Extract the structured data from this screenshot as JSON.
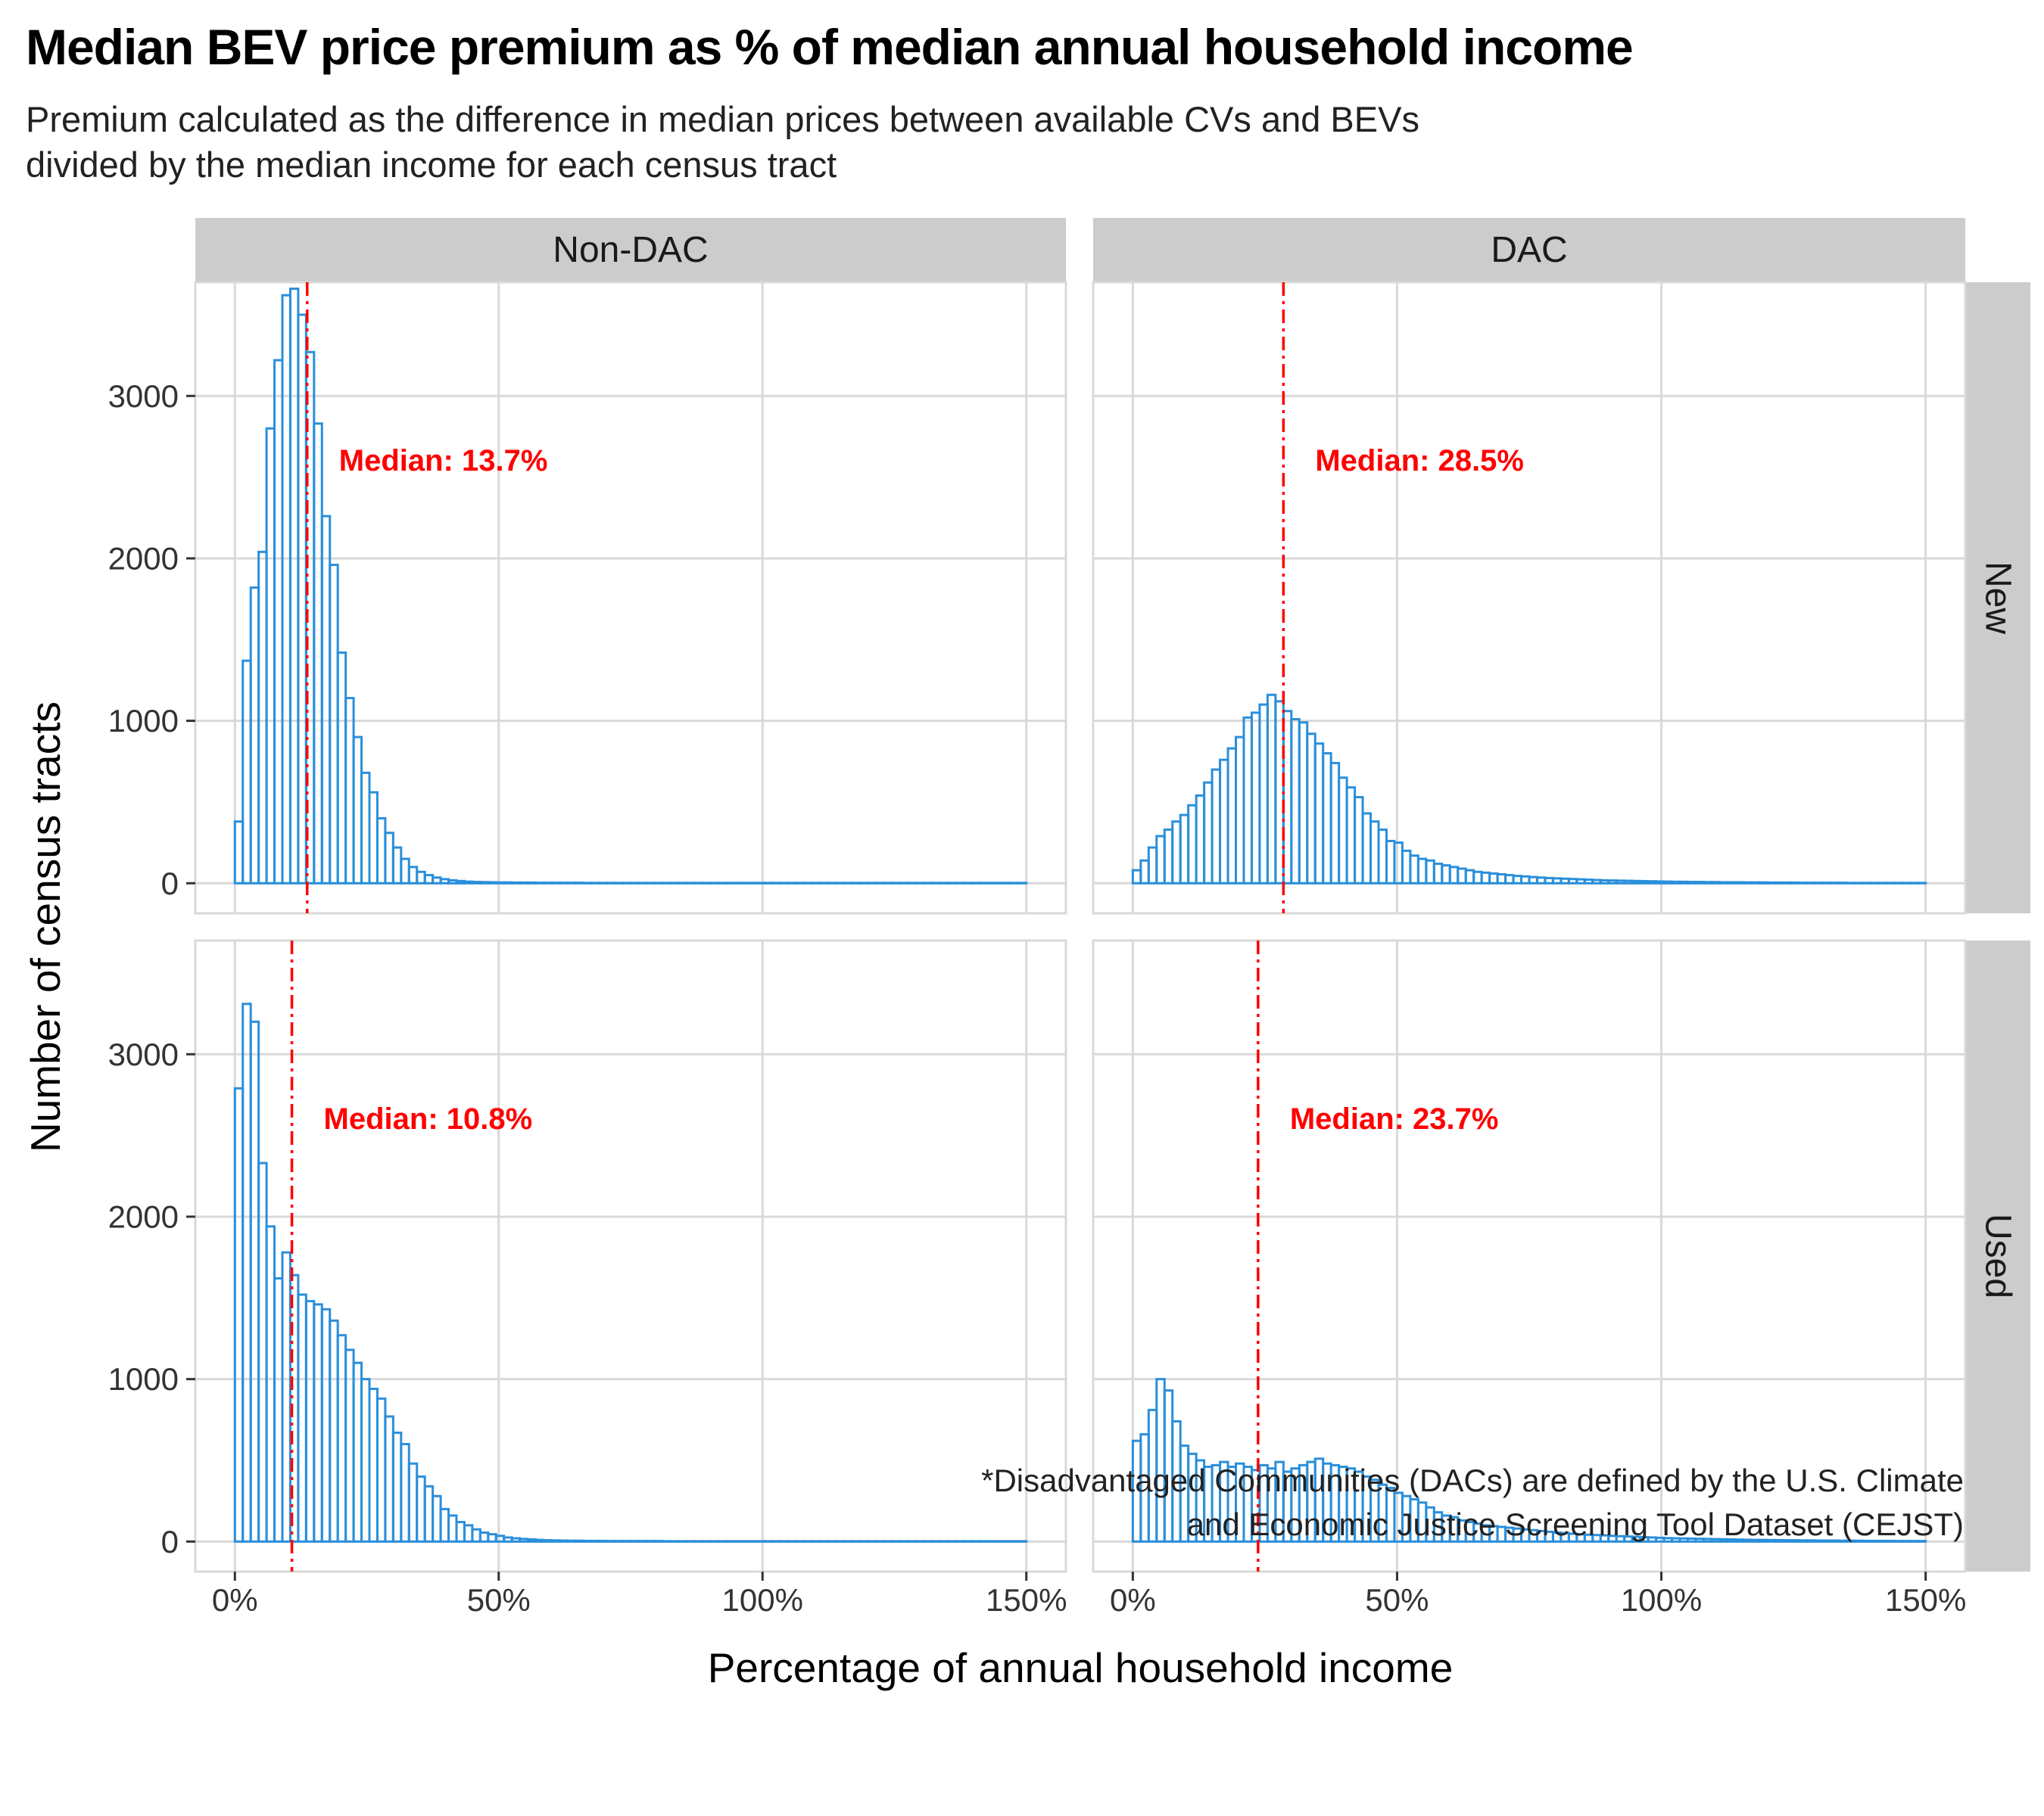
{
  "title": "Median BEV price premium as % of median annual household income",
  "subtitle_lines": [
    "Premium calculated as the difference in median prices between available CVs and BEVs",
    "divided by the median income for each census tract"
  ],
  "caption_lines": [
    "*Disadvantaged Communities (DACs) are defined by the U.S. Climate",
    "and Economic Justice Screening Tool Dataset (CEJST)"
  ],
  "colors": {
    "bar_outline": "#2a8fdb",
    "median_line": "#ff0000",
    "strip_bg": "#cccccc",
    "grid": "#d9d9d9"
  },
  "chart_data": {
    "type": "histogram",
    "xlabel": "Percentage of annual household income",
    "ylabel": "Number of census tracts",
    "xlim": [
      0,
      150
    ],
    "ylim": [
      0,
      3700
    ],
    "x_ticks": [
      0,
      50,
      100,
      150
    ],
    "x_tick_labels": [
      "0%",
      "50%",
      "100%",
      "150%"
    ],
    "y_ticks": [
      0,
      1000,
      2000,
      3000
    ],
    "y_tick_labels": [
      "0",
      "1000",
      "2000",
      "3000"
    ],
    "grid": true,
    "bin_width": 1.5,
    "column_facets": [
      "Non-DAC",
      "DAC"
    ],
    "row_facets": [
      "New",
      "Used"
    ],
    "panels": [
      {
        "row": "New",
        "col": "Non-DAC",
        "median": 13.7,
        "median_label": "Median: 13.7%",
        "counts": [
          380,
          1370,
          1820,
          2040,
          2800,
          3220,
          3620,
          3660,
          3500,
          3270,
          2830,
          2260,
          1960,
          1420,
          1140,
          900,
          680,
          560,
          400,
          310,
          220,
          150,
          100,
          70,
          50,
          35,
          25,
          18,
          14,
          10,
          8,
          7,
          6,
          5,
          5,
          4,
          4,
          4,
          3,
          3,
          3,
          3,
          3,
          3,
          2,
          2,
          2,
          2,
          2,
          2,
          2,
          2,
          2,
          2,
          2,
          2,
          2,
          2,
          2,
          2,
          2,
          2,
          2,
          2,
          2,
          2,
          2,
          2,
          2,
          2,
          2,
          2,
          2,
          2,
          2,
          2,
          2,
          2,
          2,
          2,
          2,
          2,
          2,
          2,
          2,
          2,
          2,
          2,
          2,
          2,
          2,
          2,
          2,
          2,
          2,
          2,
          2,
          2,
          2,
          2
        ]
      },
      {
        "row": "New",
        "col": "DAC",
        "median": 28.5,
        "median_label": "Median: 28.5%",
        "counts": [
          80,
          140,
          220,
          290,
          330,
          380,
          420,
          480,
          540,
          620,
          700,
          760,
          830,
          900,
          1020,
          1050,
          1100,
          1160,
          1120,
          1060,
          1010,
          990,
          920,
          860,
          800,
          740,
          650,
          590,
          530,
          430,
          380,
          330,
          260,
          250,
          200,
          170,
          150,
          140,
          120,
          110,
          100,
          90,
          80,
          70,
          65,
          60,
          55,
          50,
          45,
          42,
          38,
          35,
          32,
          30,
          28,
          26,
          24,
          22,
          20,
          18,
          17,
          16,
          15,
          14,
          13,
          12,
          11,
          10,
          9,
          9,
          8,
          8,
          7,
          7,
          6,
          6,
          6,
          5,
          5,
          5,
          4,
          4,
          4,
          4,
          3,
          3,
          3,
          3,
          3,
          3,
          2,
          2,
          2,
          2,
          2,
          2,
          2,
          2,
          2,
          2
        ]
      },
      {
        "row": "Used",
        "col": "Non-DAC",
        "median": 10.8,
        "median_label": "Median: 10.8%",
        "counts": [
          2790,
          3310,
          3200,
          2330,
          1940,
          1620,
          1780,
          1640,
          1520,
          1480,
          1460,
          1430,
          1360,
          1270,
          1180,
          1100,
          1000,
          940,
          880,
          770,
          670,
          600,
          480,
          400,
          340,
          280,
          200,
          160,
          120,
          100,
          75,
          55,
          45,
          35,
          25,
          20,
          16,
          13,
          10,
          8,
          7,
          6,
          5,
          5,
          4,
          4,
          4,
          3,
          3,
          3,
          3,
          3,
          3,
          3,
          2,
          2,
          2,
          2,
          2,
          2,
          2,
          2,
          2,
          2,
          2,
          2,
          2,
          2,
          2,
          2,
          2,
          2,
          2,
          2,
          2,
          2,
          2,
          2,
          2,
          2,
          2,
          2,
          2,
          2,
          2,
          2,
          2,
          2,
          2,
          2,
          2,
          2,
          2,
          2,
          2,
          2,
          2,
          2,
          2,
          2
        ]
      },
      {
        "row": "Used",
        "col": "DAC",
        "median": 23.7,
        "median_label": "Median: 23.7%",
        "counts": [
          620,
          660,
          810,
          1000,
          930,
          740,
          590,
          540,
          500,
          460,
          470,
          490,
          460,
          480,
          460,
          440,
          470,
          450,
          490,
          430,
          450,
          470,
          490,
          510,
          480,
          470,
          460,
          450,
          430,
          400,
          380,
          350,
          330,
          300,
          280,
          260,
          240,
          210,
          180,
          160,
          150,
          130,
          120,
          110,
          100,
          95,
          90,
          85,
          80,
          75,
          70,
          65,
          60,
          55,
          52,
          48,
          45,
          42,
          40,
          38,
          35,
          33,
          31,
          29,
          27,
          25,
          23,
          21,
          20,
          19,
          18,
          17,
          16,
          15,
          14,
          13,
          12,
          11,
          10,
          10,
          9,
          9,
          8,
          8,
          7,
          7,
          6,
          6,
          6,
          5,
          5,
          5,
          4,
          4,
          4,
          4,
          3,
          3,
          3,
          3
        ]
      }
    ]
  }
}
